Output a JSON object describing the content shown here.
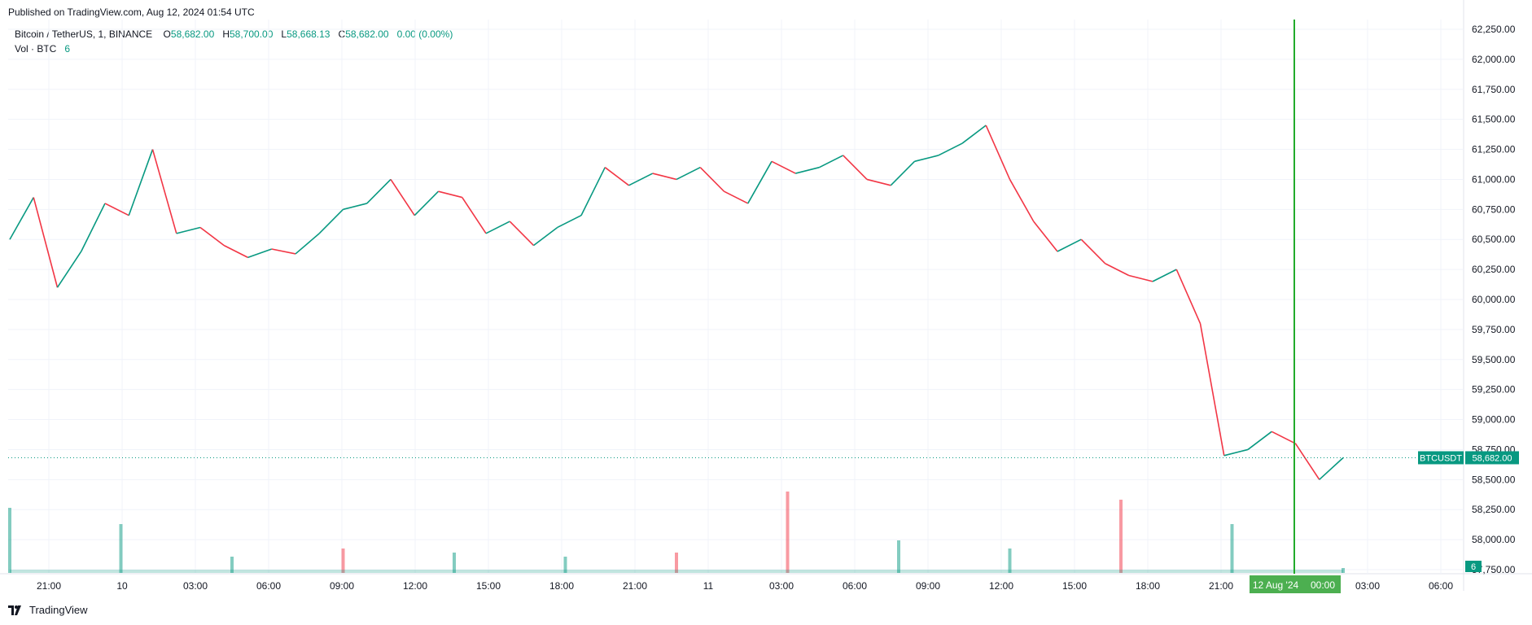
{
  "published": "Published on TradingView.com, Aug 12, 2024 01:54 UTC",
  "legend": {
    "title": "Bitcoin / TetherUS, 1, BINANCE",
    "o_key": "O",
    "o": "58,682.00",
    "h_key": "H",
    "h": "58,700.00",
    "l_key": "L",
    "l": "58,668.13",
    "c_key": "C",
    "c": "58,682.00",
    "change": "0.00 (0.00%)",
    "vol_label": "Vol · BTC",
    "vol_value": "6"
  },
  "footer": {
    "brand": "TradingView"
  },
  "colors": {
    "up": "#089981",
    "down": "#f23645",
    "grid": "#f0f3fa",
    "crosshair": "#22ab94",
    "last_price": "#089981",
    "date_badge": "#4caf50"
  },
  "chart_data": {
    "type": "line",
    "symbol": "BTCUSDT",
    "interval": "1m",
    "title": "Bitcoin / TetherUS, 1, BINANCE",
    "x_tick_labels": [
      "21:00",
      "10",
      "03:00",
      "06:00",
      "09:00",
      "12:00",
      "15:00",
      "18:00",
      "21:00",
      "11",
      "03:00",
      "06:00",
      "09:00",
      "12:00",
      "15:00",
      "18:00",
      "21:00",
      "12 Aug '24",
      "03:00",
      "06:00"
    ],
    "y_tick_labels": [
      "62,250.00",
      "62,000.00",
      "61,750.00",
      "61,500.00",
      "61,250.00",
      "61,000.00",
      "60,750.00",
      "60,500.00",
      "60,250.00",
      "60,000.00",
      "59,750.00",
      "59,500.00",
      "59,250.00",
      "59,000.00",
      "58,750.00",
      "58,500.00",
      "58,250.00",
      "58,000.00",
      "57,750.00"
    ],
    "ylim": [
      57750,
      62250
    ],
    "last_price": 58682.0,
    "last_price_label": "58,682.00",
    "last_symbol_label": "BTCUSDT",
    "volume_last_label": "6",
    "crosshair_date": "12 Aug '24",
    "crosshair_time": "00:00",
    "price_series": {
      "name": "BTCUSDT",
      "x": [
        "Aug 9 18:00",
        "Aug 9 19:00",
        "Aug 9 20:00",
        "Aug 9 21:00",
        "Aug 9 22:00",
        "Aug 9 23:00",
        "Aug 10 00:00",
        "Aug 10 01:00",
        "Aug 10 02:00",
        "Aug 10 03:00",
        "Aug 10 04:00",
        "Aug 10 05:00",
        "Aug 10 06:00",
        "Aug 10 07:00",
        "Aug 10 08:00",
        "Aug 10 09:00",
        "Aug 10 10:00",
        "Aug 10 11:00",
        "Aug 10 12:00",
        "Aug 10 13:00",
        "Aug 10 14:00",
        "Aug 10 15:00",
        "Aug 10 16:00",
        "Aug 10 17:00",
        "Aug 10 18:00",
        "Aug 10 19:00",
        "Aug 10 20:00",
        "Aug 10 21:00",
        "Aug 10 22:00",
        "Aug 10 23:00",
        "Aug 11 00:00",
        "Aug 11 01:00",
        "Aug 11 02:00",
        "Aug 11 03:00",
        "Aug 11 04:00",
        "Aug 11 05:00",
        "Aug 11 06:00",
        "Aug 11 07:00",
        "Aug 11 08:00",
        "Aug 11 09:00",
        "Aug 11 10:00",
        "Aug 11 11:00",
        "Aug 11 12:00",
        "Aug 11 13:00",
        "Aug 11 14:00",
        "Aug 11 15:00",
        "Aug 11 16:00",
        "Aug 11 17:00",
        "Aug 11 18:00",
        "Aug 11 19:00",
        "Aug 11 20:00",
        "Aug 11 21:00",
        "Aug 11 22:00",
        "Aug 11 23:00",
        "Aug 12 00:00",
        "Aug 12 01:00",
        "Aug 12 01:54"
      ],
      "values": [
        60500,
        60850,
        60100,
        60400,
        60800,
        60700,
        61250,
        60550,
        60600,
        60450,
        60350,
        60420,
        60380,
        60550,
        60750,
        60800,
        61000,
        60700,
        60900,
        60850,
        60550,
        60650,
        60450,
        60600,
        60700,
        61100,
        60950,
        61050,
        61000,
        61100,
        60900,
        60800,
        61150,
        61050,
        61100,
        61200,
        61000,
        60950,
        61150,
        61200,
        61300,
        61450,
        61000,
        60650,
        60400,
        60500,
        60300,
        60200,
        60150,
        60250,
        59800,
        58700,
        58750,
        58900,
        58800,
        58500,
        58682
      ]
    },
    "volume_series": {
      "name": "Vol · BTC",
      "x": [
        "Aug 9 18:00",
        "Aug 10 00:00",
        "Aug 10 06:00",
        "Aug 10 12:00",
        "Aug 10 18:00",
        "Aug 11 00:00",
        "Aug 11 06:00",
        "Aug 11 09:00",
        "Aug 11 12:00",
        "Aug 11 18:00",
        "Aug 11 21:00",
        "Aug 12 00:00",
        "Aug 12 01:54"
      ],
      "values": [
        80,
        60,
        20,
        30,
        25,
        20,
        25,
        100,
        40,
        30,
        90,
        60,
        6
      ]
    },
    "grid": true
  }
}
